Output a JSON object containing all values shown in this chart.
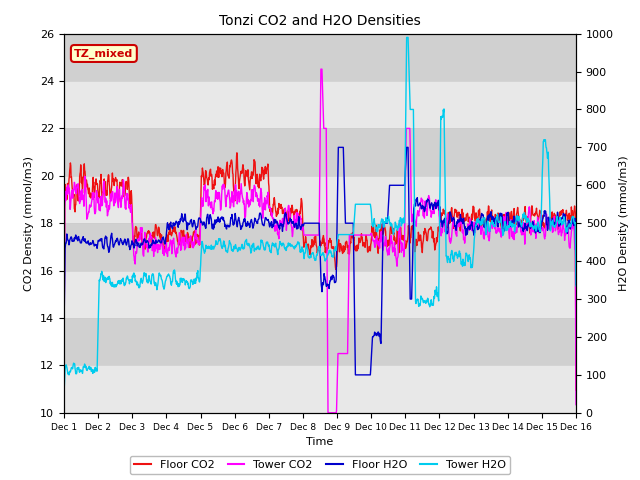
{
  "title": "Tonzi CO2 and H2O Densities",
  "xlabel": "Time",
  "ylabel_left": "CO2 Density (mmol/m3)",
  "ylabel_right": "H2O Density (mmol/m3)",
  "ylim_left": [
    10,
    26
  ],
  "ylim_right": [
    0,
    1000
  ],
  "annotation_text": "TZ_mixed",
  "annotation_color": "#cc0000",
  "annotation_bg": "#ffffcc",
  "annotation_border": "#cc0000",
  "colors": {
    "floor_co2": "#ee1111",
    "tower_co2": "#ff00ff",
    "floor_h2o": "#0000cc",
    "tower_h2o": "#00ccee"
  },
  "xtick_labels": [
    "Dec 1",
    "Dec 2",
    "Dec 3",
    "Dec 4",
    "Dec 5",
    "Dec 6",
    "Dec 7",
    "Dec 8",
    "Dec 9",
    "Dec 10",
    "Dec 11",
    "Dec 12",
    "Dec 13",
    "Dec 14",
    "Dec 15",
    "Dec 16"
  ],
  "yticks_left": [
    10,
    12,
    14,
    16,
    18,
    20,
    22,
    24,
    26
  ],
  "yticks_right": [
    0,
    100,
    200,
    300,
    400,
    500,
    600,
    700,
    800,
    900,
    1000
  ],
  "grid_color": "#cccccc",
  "bg_color_light": "#e8e8e8",
  "bg_color_dark": "#d0d0d0",
  "legend_labels": [
    "Floor CO2",
    "Tower CO2",
    "Floor H2O",
    "Tower H2O"
  ]
}
